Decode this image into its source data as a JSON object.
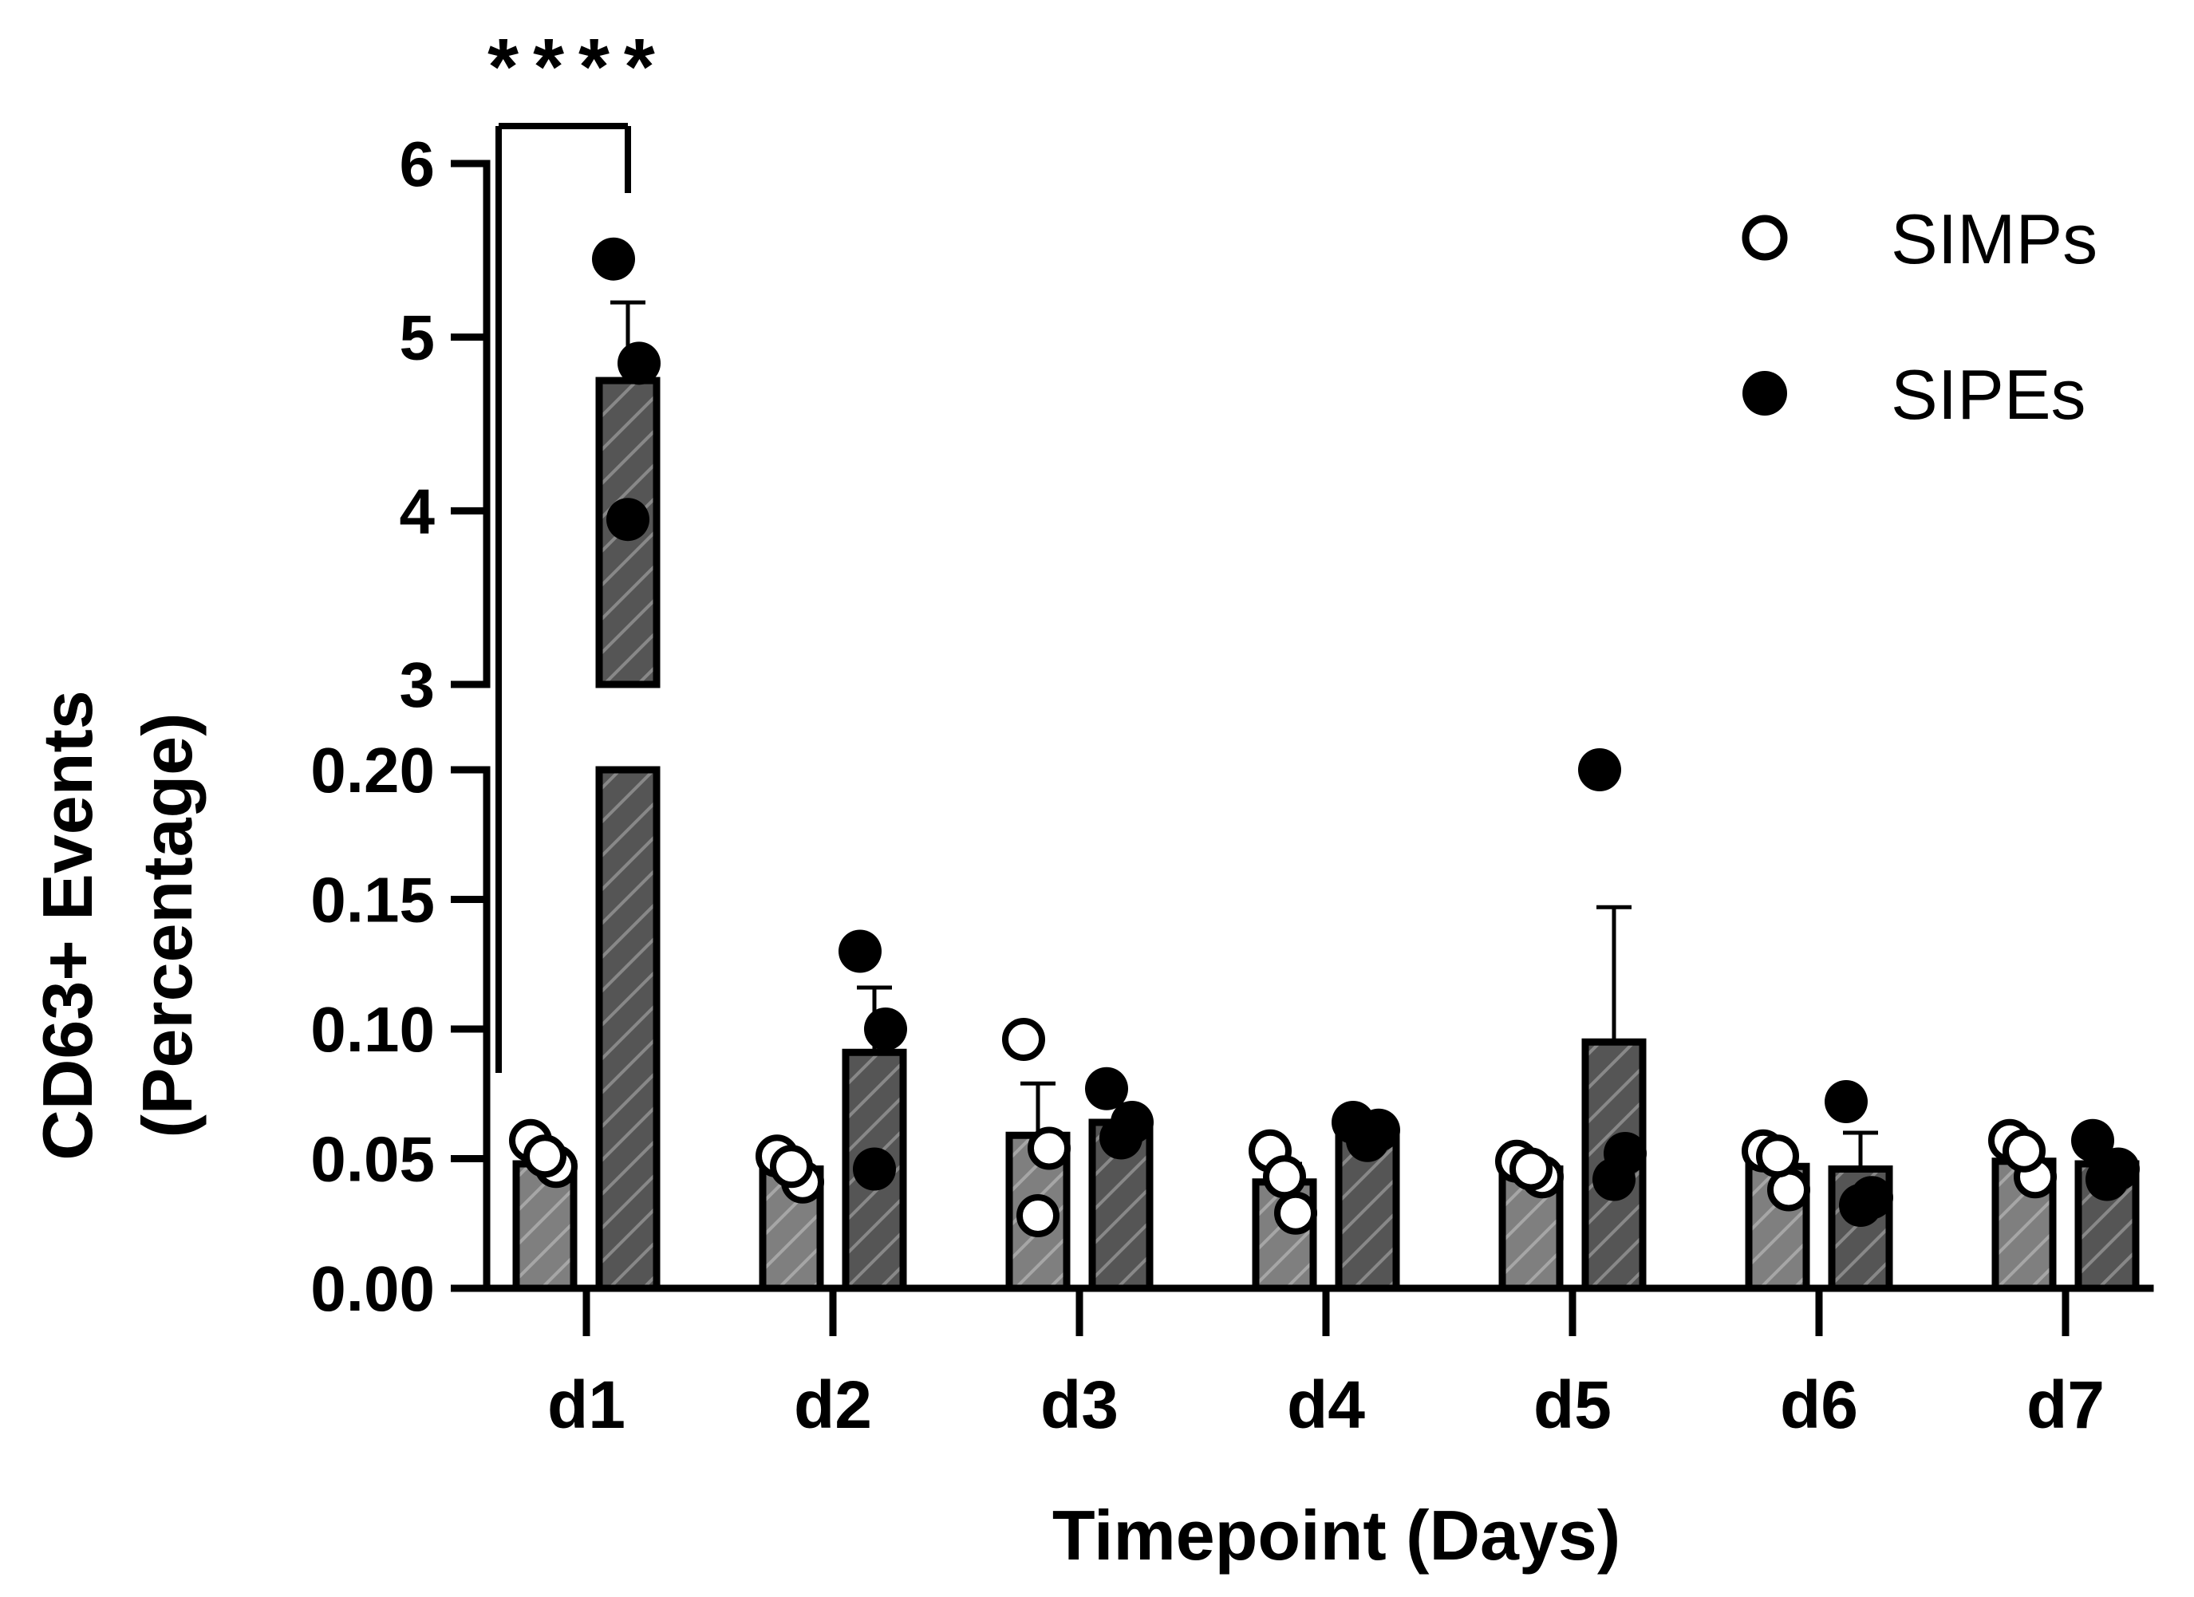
{
  "chart_data": {
    "type": "bar",
    "title": "",
    "xlabel": "Timepoint (Days)",
    "ylabel": [
      "CD63+ Events",
      "(Percentage)"
    ],
    "categories": [
      "d1",
      "d2",
      "d3",
      "d4",
      "d5",
      "d6",
      "d7"
    ],
    "y_axis": {
      "broken": true,
      "lower_segment": {
        "ylim": [
          0,
          0.2
        ],
        "ticks": [
          "0.00",
          "0.05",
          "0.10",
          "0.15",
          "0.20"
        ]
      },
      "upper_segment": {
        "ylim": [
          3,
          6
        ],
        "ticks": [
          "3",
          "4",
          "5",
          "6"
        ]
      }
    },
    "series": [
      {
        "name": "SIMPs",
        "marker": "open-circle",
        "bar_fill": "#7f7f7f",
        "means": [
          0.048,
          0.046,
          0.059,
          0.041,
          0.046,
          0.047,
          0.049
        ],
        "errors": [
          0.004,
          0.004,
          0.02,
          0.007,
          0.003,
          0.005,
          0.005
        ],
        "points": [
          [
            0.057,
            0.047,
            0.051
          ],
          [
            0.051,
            0.041,
            0.047
          ],
          [
            0.096,
            0.054,
            0.028
          ],
          [
            0.053,
            0.029,
            0.043
          ],
          [
            0.049,
            0.043,
            0.046
          ],
          [
            0.053,
            0.038,
            0.051
          ],
          [
            0.057,
            0.043,
            0.053
          ]
        ]
      },
      {
        "name": "SIPEs",
        "marker": "filled-circle",
        "bar_fill": "#555555",
        "means": [
          4.75,
          0.091,
          0.064,
          0.059,
          0.095,
          0.046,
          0.048
        ],
        "errors": [
          0.45,
          0.025,
          0.007,
          0.004,
          0.052,
          0.014,
          0.005
        ],
        "points": [
          [
            5.45,
            4.85,
            3.95
          ],
          [
            0.13,
            0.1,
            0.046
          ],
          [
            0.077,
            0.064,
            0.058
          ],
          [
            0.064,
            0.061,
            0.057
          ],
          [
            0.2,
            0.052,
            0.042
          ],
          [
            0.072,
            0.035,
            0.032
          ],
          [
            0.057,
            0.046,
            0.042
          ]
        ]
      }
    ],
    "significance": [
      {
        "between": [
          "SIMPs",
          "SIPEs"
        ],
        "category": "d1",
        "label": "****"
      }
    ],
    "legend": {
      "position": "top-right",
      "entries": [
        {
          "label": "SIMPs",
          "marker": "open-circle"
        },
        {
          "label": "SIPEs",
          "marker": "filled-circle"
        }
      ]
    },
    "grid": false
  }
}
